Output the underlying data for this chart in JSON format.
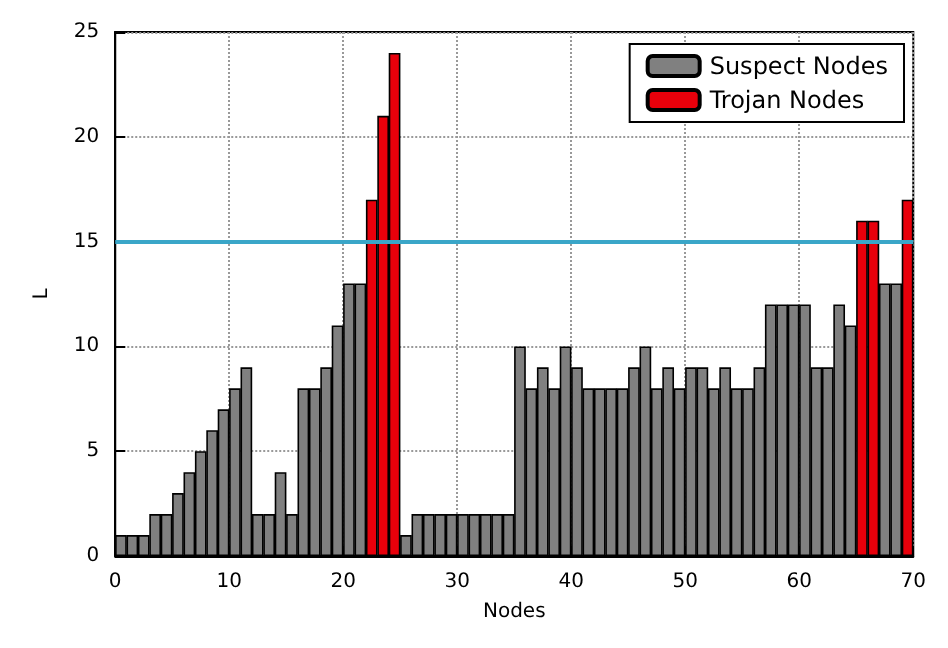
{
  "chart_data": {
    "type": "bar",
    "xlabel": "Nodes",
    "ylabel": "L",
    "x": [
      0.5,
      1.5,
      2.5,
      3.5,
      4.5,
      5.5,
      6.5,
      7.5,
      8.5,
      9.5,
      10.5,
      11.5,
      12.5,
      13.5,
      14.5,
      15.5,
      16.5,
      17.5,
      18.5,
      19.5,
      20.5,
      21.5,
      22.5,
      23.5,
      24.5,
      25.5,
      26.5,
      27.5,
      28.5,
      29.5,
      30.5,
      31.5,
      32.5,
      33.5,
      34.5,
      35.5,
      36.5,
      37.5,
      38.5,
      39.5,
      40.5,
      41.5,
      42.5,
      43.5,
      44.5,
      45.5,
      46.5,
      47.5,
      48.5,
      49.5,
      50.5,
      51.5,
      52.5,
      53.5,
      54.5,
      55.5,
      56.5,
      57.5,
      58.5,
      59.5,
      60.5,
      61.5,
      62.5,
      63.5,
      64.5,
      65.5,
      66.5,
      67.5,
      68.5,
      69.5
    ],
    "series": [
      {
        "name": "Suspect Nodes",
        "color": "#808080",
        "values": [
          1,
          1,
          1,
          2,
          2,
          3,
          4,
          5,
          6,
          7,
          8,
          9,
          2,
          2,
          4,
          2,
          8,
          8,
          9,
          11,
          13,
          13,
          null,
          null,
          null,
          1,
          2,
          2,
          2,
          2,
          2,
          2,
          2,
          2,
          2,
          10,
          8,
          9,
          8,
          10,
          9,
          8,
          8,
          8,
          8,
          9,
          10,
          8,
          9,
          8,
          9,
          9,
          8,
          9,
          8,
          8,
          9,
          12,
          12,
          12,
          12,
          9,
          9,
          12,
          11,
          null,
          null,
          13,
          13,
          null
        ]
      },
      {
        "name": "Trojan Nodes",
        "color": "#e8000b",
        "values": [
          null,
          null,
          null,
          null,
          null,
          null,
          null,
          null,
          null,
          null,
          null,
          null,
          null,
          null,
          null,
          null,
          null,
          null,
          null,
          null,
          null,
          null,
          17,
          21,
          24,
          null,
          null,
          null,
          null,
          null,
          null,
          null,
          null,
          null,
          null,
          null,
          null,
          null,
          null,
          null,
          null,
          null,
          null,
          null,
          null,
          null,
          null,
          null,
          null,
          null,
          null,
          null,
          null,
          null,
          null,
          null,
          null,
          null,
          null,
          null,
          null,
          null,
          null,
          null,
          null,
          16,
          16,
          null,
          null,
          17
        ]
      }
    ],
    "xlim": [
      0,
      70
    ],
    "xticks": [
      0,
      10,
      20,
      30,
      40,
      50,
      60,
      70
    ],
    "ylim": [
      0,
      25
    ],
    "yticks": [
      0,
      5,
      10,
      15,
      20,
      25
    ],
    "ref_lines": [
      {
        "axis": "y",
        "value": 15,
        "color": "#3aa6c8"
      }
    ],
    "grid": true,
    "legend": "top right"
  }
}
